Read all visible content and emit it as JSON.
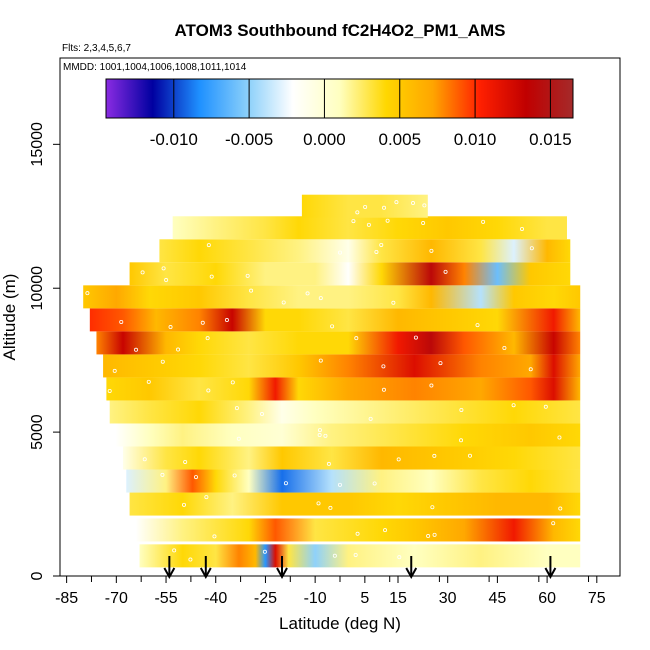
{
  "chart_data": {
    "type": "heatmap",
    "title": "ATOM3 Southbound fC2H4O2_PM1_AMS",
    "subtitle_flights": "Flts: 2,3,4,5,6,7",
    "subtitle_dates": "MMDD: 1001,1004,1006,1008,1011,1014",
    "xlabel": "Latitude (deg N)",
    "ylabel": "Altitude (m)",
    "xlim": [
      -87,
      82
    ],
    "ylim": [
      0,
      18000
    ],
    "x_ticks": [
      -85,
      -70,
      -55,
      -40,
      -25,
      -10,
      5,
      15,
      30,
      45,
      60,
      75
    ],
    "x_tick_labels": [
      "-85",
      "-70",
      "-55",
      "-40",
      "-25",
      "-10",
      "5",
      "15",
      "30",
      "45",
      "60",
      "75"
    ],
    "y_ticks": [
      0,
      5000,
      10000,
      15000
    ],
    "y_tick_labels": [
      "0",
      "5000",
      "10000",
      "15000"
    ],
    "colorbar": {
      "min": -0.0145,
      "max": 0.0165,
      "ticks": [
        -0.01,
        -0.005,
        0.0,
        0.005,
        0.01,
        0.015
      ],
      "tick_labels": [
        "-0.010",
        "-0.005",
        "0.000",
        "0.005",
        "0.010",
        "0.015"
      ],
      "colors": [
        "#8a2be2",
        "#0000a0",
        "#1e90ff",
        "#87cefa",
        "#ffffff",
        "#ffffc0",
        "#ffd700",
        "#ffa500",
        "#ff2000",
        "#c00000",
        "#a52a2a"
      ]
    },
    "arrow_latitudes": [
      -54,
      -43,
      -20,
      19,
      61
    ],
    "layers": [
      {
        "alt": 700,
        "lat_min": -63,
        "lat_max": 70,
        "nodes": [
          [
            -63,
            0.001
          ],
          [
            -50,
            0.004
          ],
          [
            -40,
            0.003
          ],
          [
            -33,
            0.008
          ],
          [
            -28,
            0.006
          ],
          [
            -25,
            -0.008
          ],
          [
            -22,
            0.012
          ],
          [
            -18,
            0.003
          ],
          [
            -10,
            -0.005
          ],
          [
            0,
            0.002
          ],
          [
            20,
            0.001
          ],
          [
            40,
            0.002
          ],
          [
            60,
            0.001
          ],
          [
            70,
            0.001
          ]
        ]
      },
      {
        "alt": 1600,
        "lat_min": -64,
        "lat_max": 70,
        "nodes": [
          [
            -64,
            -0.002
          ],
          [
            -50,
            0.002
          ],
          [
            -30,
            0.004
          ],
          [
            -22,
            0.009
          ],
          [
            -10,
            0.003
          ],
          [
            10,
            0.004
          ],
          [
            20,
            0.005
          ],
          [
            35,
            0.007
          ],
          [
            50,
            0.011
          ],
          [
            62,
            0.006
          ],
          [
            70,
            0.004
          ]
        ]
      },
      {
        "alt": 2500,
        "lat_min": -66,
        "lat_max": 70,
        "nodes": [
          [
            -66,
            0.003
          ],
          [
            -50,
            0.004
          ],
          [
            -35,
            0.002
          ],
          [
            -20,
            0.005
          ],
          [
            0,
            0.005
          ],
          [
            15,
            0.004
          ],
          [
            30,
            0.005
          ],
          [
            45,
            0.006
          ],
          [
            60,
            0.006
          ],
          [
            70,
            0.004
          ]
        ]
      },
      {
        "alt": 3300,
        "lat_min": -67,
        "lat_max": 70,
        "nodes": [
          [
            -67,
            -0.003
          ],
          [
            -55,
            0.002
          ],
          [
            -47,
            0.009
          ],
          [
            -40,
            0.004
          ],
          [
            -30,
            0.001
          ],
          [
            -20,
            -0.009
          ],
          [
            -5,
            -0.004
          ],
          [
            10,
            0.002
          ],
          [
            25,
            0.001
          ],
          [
            40,
            0.003
          ],
          [
            55,
            0.004
          ],
          [
            70,
            0.003
          ]
        ]
      },
      {
        "alt": 4100,
        "lat_min": -68,
        "lat_max": 70,
        "nodes": [
          [
            -68,
            -0.001
          ],
          [
            -55,
            0.003
          ],
          [
            -45,
            0.004
          ],
          [
            -30,
            0.002
          ],
          [
            -20,
            0.005
          ],
          [
            -5,
            0.003
          ],
          [
            10,
            0.006
          ],
          [
            30,
            0.005
          ],
          [
            50,
            0.004
          ],
          [
            70,
            0.003
          ]
        ]
      },
      {
        "alt": 4900,
        "lat_min": -70,
        "lat_max": 70,
        "nodes": [
          [
            -70,
            -0.002
          ],
          [
            -60,
            0.001
          ],
          [
            -50,
            0.002
          ],
          [
            -35,
            0.001
          ],
          [
            -20,
            0.0
          ],
          [
            -5,
            0.002
          ],
          [
            15,
            0.003
          ],
          [
            35,
            0.004
          ],
          [
            55,
            0.005
          ],
          [
            70,
            0.004
          ]
        ]
      },
      {
        "alt": 5700,
        "lat_min": -72,
        "lat_max": 70,
        "nodes": [
          [
            -72,
            0.002
          ],
          [
            -60,
            0.003
          ],
          [
            -45,
            0.004
          ],
          [
            -30,
            0.002
          ],
          [
            -20,
            -0.001
          ],
          [
            -10,
            0.001
          ],
          [
            10,
            0.002
          ],
          [
            30,
            0.003
          ],
          [
            50,
            0.004
          ],
          [
            70,
            0.003
          ]
        ]
      },
      {
        "alt": 6500,
        "lat_min": -73,
        "lat_max": 70,
        "nodes": [
          [
            -73,
            0.004
          ],
          [
            -60,
            0.005
          ],
          [
            -45,
            0.003
          ],
          [
            -30,
            0.004
          ],
          [
            -22,
            0.011
          ],
          [
            -15,
            0.004
          ],
          [
            0,
            0.007
          ],
          [
            20,
            0.008
          ],
          [
            40,
            0.007
          ],
          [
            55,
            0.009
          ],
          [
            62,
            0.012
          ],
          [
            70,
            0.006
          ]
        ]
      },
      {
        "alt": 7300,
        "lat_min": -74,
        "lat_max": 70,
        "nodes": [
          [
            -74,
            0.006
          ],
          [
            -60,
            0.005
          ],
          [
            -45,
            0.004
          ],
          [
            -30,
            0.003
          ],
          [
            -15,
            0.005
          ],
          [
            0,
            0.008
          ],
          [
            20,
            0.012
          ],
          [
            40,
            0.008
          ],
          [
            55,
            0.007
          ],
          [
            62,
            0.012
          ],
          [
            70,
            0.007
          ]
        ]
      },
      {
        "alt": 8100,
        "lat_min": -76,
        "lat_max": 70,
        "nodes": [
          [
            -76,
            0.008
          ],
          [
            -68,
            0.013
          ],
          [
            -55,
            0.006
          ],
          [
            -45,
            0.004
          ],
          [
            -30,
            0.003
          ],
          [
            -15,
            0.004
          ],
          [
            0,
            0.004
          ],
          [
            15,
            0.011
          ],
          [
            25,
            0.014
          ],
          [
            35,
            0.009
          ],
          [
            50,
            0.006
          ],
          [
            62,
            0.013
          ],
          [
            70,
            0.008
          ]
        ]
      },
      {
        "alt": 8900,
        "lat_min": -78,
        "lat_max": 70,
        "nodes": [
          [
            -78,
            0.01
          ],
          [
            -68,
            0.009
          ],
          [
            -58,
            0.006
          ],
          [
            -45,
            0.008
          ],
          [
            -35,
            0.013
          ],
          [
            -25,
            0.004
          ],
          [
            -15,
            0.004
          ],
          [
            0,
            0.003
          ],
          [
            15,
            0.006
          ],
          [
            30,
            0.005
          ],
          [
            45,
            0.004
          ],
          [
            62,
            0.011
          ],
          [
            70,
            0.006
          ]
        ]
      },
      {
        "alt": 9700,
        "lat_min": -80,
        "lat_max": 70,
        "nodes": [
          [
            -80,
            0.005
          ],
          [
            -70,
            0.007
          ],
          [
            -60,
            0.004
          ],
          [
            -45,
            0.005
          ],
          [
            -30,
            0.003
          ],
          [
            -15,
            0.002
          ],
          [
            0,
            0.002
          ],
          [
            15,
            0.003
          ],
          [
            25,
            0.006
          ],
          [
            40,
            -0.004
          ],
          [
            50,
            0.005
          ],
          [
            62,
            0.004
          ],
          [
            70,
            0.005
          ]
        ]
      },
      {
        "alt": 10500,
        "lat_min": -66,
        "lat_max": 67,
        "nodes": [
          [
            -66,
            0.005
          ],
          [
            -55,
            0.003
          ],
          [
            -40,
            0.004
          ],
          [
            -25,
            0.002
          ],
          [
            -10,
            0.002
          ],
          [
            0,
            -0.002
          ],
          [
            10,
            0.004
          ],
          [
            25,
            0.014
          ],
          [
            35,
            0.008
          ],
          [
            45,
            -0.006
          ],
          [
            55,
            0.005
          ],
          [
            67,
            0.004
          ]
        ]
      },
      {
        "alt": 11300,
        "lat_min": -57,
        "lat_max": 67,
        "nodes": [
          [
            -57,
            0.003
          ],
          [
            -45,
            0.004
          ],
          [
            -30,
            0.003
          ],
          [
            -15,
            0.002
          ],
          [
            0,
            -0.001
          ],
          [
            10,
            0.003
          ],
          [
            25,
            0.006
          ],
          [
            40,
            0.003
          ],
          [
            50,
            -0.003
          ],
          [
            60,
            0.006
          ],
          [
            67,
            0.004
          ]
        ]
      },
      {
        "alt": 12100,
        "lat_min": -53,
        "lat_max": 66,
        "nodes": [
          [
            -53,
            0.001
          ],
          [
            -40,
            0.002
          ],
          [
            -25,
            0.003
          ],
          [
            -15,
            0.004
          ],
          [
            0,
            0.003
          ],
          [
            15,
            0.004
          ],
          [
            30,
            0.005
          ],
          [
            45,
            0.004
          ],
          [
            60,
            0.003
          ],
          [
            66,
            0.003
          ]
        ]
      },
      {
        "alt": 12850,
        "lat_min": -14,
        "lat_max": 24,
        "nodes": [
          [
            -14,
            0.004
          ],
          [
            0,
            0.003
          ],
          [
            10,
            0.003
          ],
          [
            24,
            0.002
          ]
        ]
      }
    ]
  }
}
